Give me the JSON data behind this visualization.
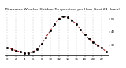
{
  "title": "Milwaukee Weather Outdoor Temperature per Hour (Last 24 Hours)",
  "hours": [
    0,
    1,
    2,
    3,
    4,
    5,
    6,
    7,
    8,
    9,
    10,
    11,
    12,
    13,
    14,
    15,
    16,
    17,
    18,
    19,
    20,
    21,
    22,
    23
  ],
  "temps": [
    28,
    27,
    26,
    25,
    24,
    24,
    25,
    27,
    31,
    36,
    41,
    46,
    50,
    52,
    51,
    49,
    46,
    42,
    38,
    35,
    32,
    30,
    28,
    25
  ],
  "line_color": "#cc0000",
  "marker_color": "#000000",
  "bg_color": "#ffffff",
  "grid_color": "#999999",
  "title_color": "#000000",
  "ylim": [
    22,
    56
  ],
  "y_ticks": [
    30,
    40,
    50
  ],
  "y_tick_labels": [
    "30",
    "40",
    "50"
  ],
  "x_tick_every": 2,
  "title_fontsize": 3.2,
  "tick_fontsize": 2.8,
  "line_width": 0.7,
  "marker_size": 1.0
}
